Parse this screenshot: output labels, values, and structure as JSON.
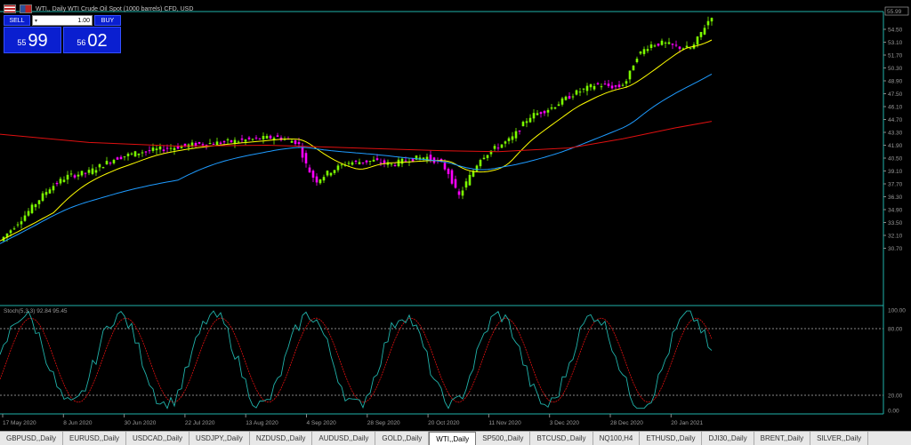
{
  "window": {
    "title": "WTI,, Daily    WTI Crude Oil Spot (1000 barrels) CFD, USD"
  },
  "trade_panel": {
    "sell_label": "SELL",
    "buy_label": "BUY",
    "quantity": "1.00",
    "sell_price_small": "55",
    "sell_price_big": "99",
    "buy_price_small": "56",
    "buy_price_big": "02"
  },
  "price_axis": {
    "ticks": [
      "54.50",
      "53.10",
      "51.70",
      "50.30",
      "48.90",
      "47.50",
      "46.10",
      "44.70",
      "43.30",
      "41.90",
      "40.50",
      "39.10",
      "37.70",
      "36.30",
      "34.90",
      "33.50",
      "32.10",
      "30.70"
    ],
    "current_price": "55.99"
  },
  "stoch": {
    "label": "Stoch(5,3,3) 92.84 95.45",
    "ticks": [
      "100.00",
      "80.00",
      "20.00",
      "0.00"
    ]
  },
  "time_axis": {
    "labels": [
      "17 May 2020",
      "8 Jun 2020",
      "30 Jun 2020",
      "22 Jul 2020",
      "13 Aug 2020",
      "4 Sep 2020",
      "28 Sep 2020",
      "20 Oct 2020",
      "11 Nov 2020",
      "3 Dec 2020",
      "28 Dec 2020",
      "20 Jan 2021"
    ]
  },
  "colors": {
    "bull": "#7CFC00",
    "bear": "#ff00ff",
    "ma_fast": "#ffff00",
    "ma_mid": "#1e9bff",
    "ma_slow": "#e01010",
    "stoch_main": "#20b2aa",
    "stoch_signal": "#e01010",
    "grid_line": "#20b2aa"
  },
  "tabs": [
    {
      "label": "GBPUSD,,Daily",
      "active": false
    },
    {
      "label": "EURUSD,,Daily",
      "active": false
    },
    {
      "label": "USDCAD,,Daily",
      "active": false
    },
    {
      "label": "USDJPY,,Daily",
      "active": false
    },
    {
      "label": "NZDUSD,,Daily",
      "active": false
    },
    {
      "label": "AUDUSD,,Daily",
      "active": false
    },
    {
      "label": "GOLD,,Daily",
      "active": false
    },
    {
      "label": "WTI,,Daily",
      "active": true
    },
    {
      "label": "SP500,,Daily",
      "active": false
    },
    {
      "label": "BTCUSD,,Daily",
      "active": false
    },
    {
      "label": "NQ100,H4",
      "active": false
    },
    {
      "label": "ETHUSD,,Daily",
      "active": false
    },
    {
      "label": "DJI30,,Daily",
      "active": false
    },
    {
      "label": "BRENT,,Daily",
      "active": false
    },
    {
      "label": "SILVER,,Daily",
      "active": false
    }
  ]
}
